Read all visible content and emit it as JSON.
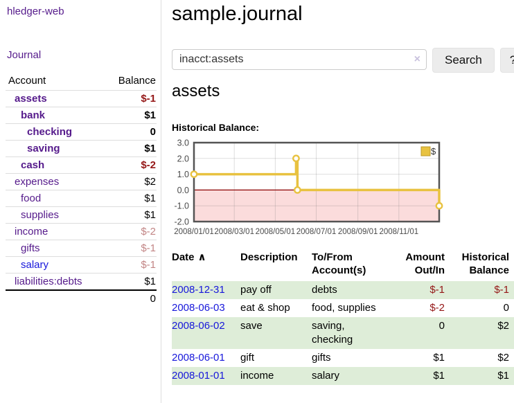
{
  "app": {
    "title": "hledger-web"
  },
  "colors": {
    "purple_link": "#551A8B",
    "blue_link": "#1717DB",
    "negative": "#941616",
    "negative_faded": "#C28585",
    "row_stripe_green": "#DEEDD8",
    "chart_gold": "#E8C240",
    "chart_negative_region": "#FBDCDC",
    "chart_zero_line": "#8B0000"
  },
  "sidebar": {
    "journal_link": "Journal",
    "accounts": {
      "header_account": "Account",
      "header_balance": "Balance",
      "rows": [
        {
          "name": "assets",
          "balance": "$-1"
        },
        {
          "name": "bank",
          "balance": "$1"
        },
        {
          "name": "checking",
          "balance": "0"
        },
        {
          "name": "saving",
          "balance": "$1"
        },
        {
          "name": "cash",
          "balance": "$-2"
        },
        {
          "name": "expenses",
          "balance": "$2"
        },
        {
          "name": "food",
          "balance": "$1"
        },
        {
          "name": "supplies",
          "balance": "$1"
        },
        {
          "name": "income",
          "balance": "$-2"
        },
        {
          "name": "gifts",
          "balance": "$-1"
        },
        {
          "name": "salary",
          "balance": "$-1"
        },
        {
          "name": "liabilities:debts",
          "balance": "$1"
        }
      ],
      "total": "0"
    }
  },
  "main": {
    "title": "sample.journal",
    "search": {
      "value": "inacct:assets",
      "clear_icon": "×",
      "button_label": "Search",
      "help_label": "?"
    },
    "account_heading": "assets",
    "chart_label": "Historical Balance:",
    "register": {
      "headers": {
        "date": "Date",
        "sort_arrow": "∧",
        "description": "Description",
        "accounts": "To/From Account(s)",
        "amount": "Amount Out/In",
        "balance": "Historical Balance"
      },
      "rows": [
        {
          "date": "2008-12-31",
          "description": "pay off",
          "accounts": "debts",
          "amount": "$-1",
          "balance": "$-1"
        },
        {
          "date": "2008-06-03",
          "description": "eat & shop",
          "accounts": "food, supplies",
          "amount": "$-2",
          "balance": "0"
        },
        {
          "date": "2008-06-02",
          "description": "save",
          "accounts": "saving, checking",
          "amount": "0",
          "balance": "$2"
        },
        {
          "date": "2008-06-01",
          "description": "gift",
          "accounts": "gifts",
          "amount": "$1",
          "balance": "$2"
        },
        {
          "date": "2008-01-01",
          "description": "income",
          "accounts": "salary",
          "amount": "$1",
          "balance": "$1"
        }
      ]
    }
  },
  "chart_data": {
    "type": "line",
    "step": true,
    "title": "Historical Balance:",
    "series": [
      {
        "name": "$",
        "color": "#E8C240",
        "points": [
          [
            "2008-01-01",
            1
          ],
          [
            "2008-06-01",
            2
          ],
          [
            "2008-06-03",
            0
          ],
          [
            "2008-12-31",
            -1
          ]
        ]
      }
    ],
    "x_range": [
      "2008-01-01",
      "2008-12-31"
    ],
    "x_ticks": [
      "2008/01/01",
      "2008/03/01",
      "2008/05/01",
      "2008/07/01",
      "2008/09/01",
      "2008/11/01"
    ],
    "y_ticks": [
      3.0,
      2.0,
      1.0,
      0.0,
      -1.0,
      -2.0
    ],
    "ylim": [
      -2,
      3
    ],
    "grid": true,
    "legend_position": "top-right",
    "negative_region_color": "#FBDCDC",
    "zero_line_color": "#8B0000"
  }
}
